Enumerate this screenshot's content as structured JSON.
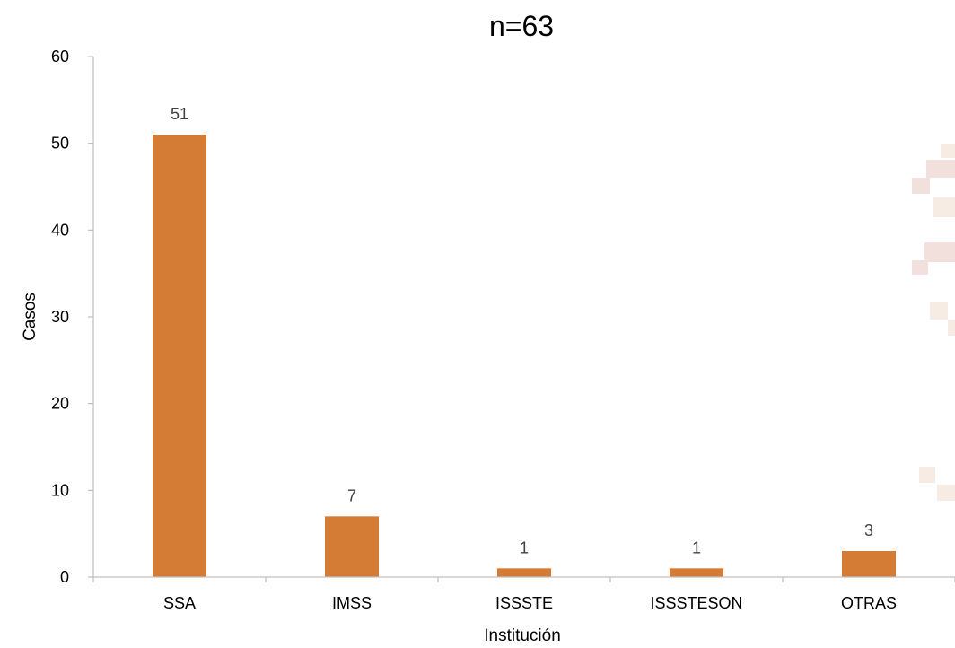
{
  "chart_data": {
    "type": "bar",
    "title": "n=63",
    "xlabel": "Institución",
    "ylabel": "Casos",
    "categories": [
      "SSA",
      "IMSS",
      "ISSSTE",
      "ISSSTESON",
      "OTRAS"
    ],
    "values": [
      51,
      7,
      1,
      1,
      3
    ],
    "data_labels": [
      "51",
      "7",
      "1",
      "1",
      "3"
    ],
    "yticks": [
      "0",
      "10",
      "20",
      "30",
      "40",
      "50",
      "60"
    ],
    "ylim": [
      0,
      60
    ],
    "grid": false,
    "legend": "none",
    "bar_color": "#d47b36"
  }
}
